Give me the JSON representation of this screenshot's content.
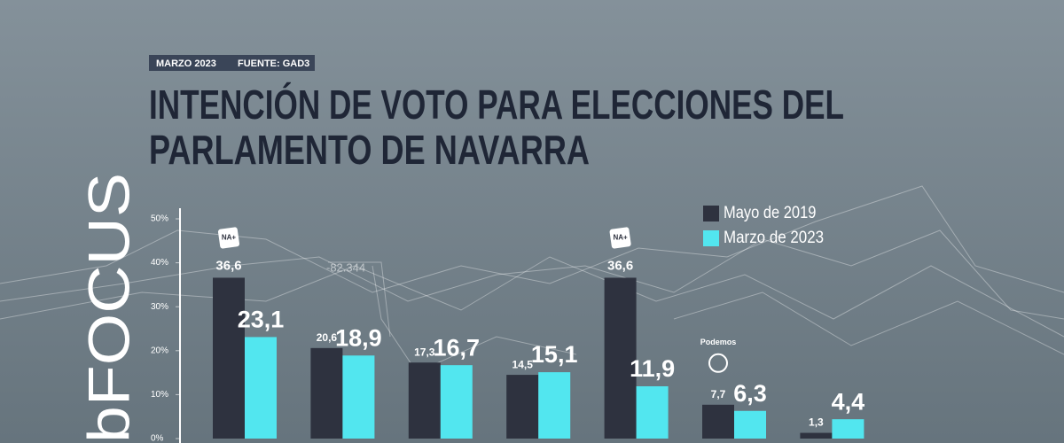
{
  "logo": "bFOCUS",
  "decor": {
    "number": "-82.344"
  },
  "chart_data": {
    "type": "bar",
    "date": "MARZO 2023",
    "source": "FUENTE: GAD3",
    "title": [
      "INTENCIÓN DE VOTO PARA ELECCIONES DEL",
      "PARLAMENTO DE NAVARRA"
    ],
    "categories": [
      "NA+",
      null,
      null,
      null,
      "NA+",
      "Podemos",
      null
    ],
    "series": [
      {
        "name": "Mayo de 2019",
        "color": "#2e323f",
        "values": [
          36.6,
          20.6,
          17.3,
          14.5,
          36.6,
          7.7,
          1.3
        ],
        "value_labels": [
          "36,6",
          "20,6",
          "17,3",
          "14,5",
          "36,6",
          "7,7",
          "1,3"
        ]
      },
      {
        "name": "Marzo de 2023",
        "color": "#52e6ef",
        "values": [
          23.1,
          18.9,
          16.7,
          15.1,
          11.9,
          6.3,
          4.4
        ],
        "value_labels": [
          "23,1",
          "18,9",
          "16,7",
          "15,1",
          "11,9",
          "6,3",
          "4,4"
        ]
      }
    ],
    "ylim": [
      0,
      50
    ],
    "yticks": [
      {
        "value": 0,
        "label": "0%"
      },
      {
        "value": 10,
        "label": "10%"
      },
      {
        "value": 20,
        "label": "20%"
      },
      {
        "value": 30,
        "label": "30%"
      },
      {
        "value": 40,
        "label": "40%"
      },
      {
        "value": 50,
        "label": "50%"
      }
    ],
    "legend": "top-right"
  }
}
